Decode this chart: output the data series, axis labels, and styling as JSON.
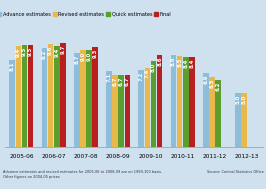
{
  "categories": [
    "2005-06",
    "2006-07",
    "2007-08",
    "2008-09",
    "2009-10",
    "2010-11",
    "2011-12",
    "2012-13"
  ],
  "series": {
    "Advance estimates": [
      8.1,
      9.2,
      8.7,
      7.1,
      7.2,
      8.6,
      6.9,
      5.0
    ],
    "Revised estimates": [
      9.4,
      9.6,
      9.0,
      6.7,
      7.4,
      8.5,
      6.5,
      5.0
    ],
    "Quick estimates": [
      9.5,
      9.4,
      9.0,
      6.7,
      8.0,
      8.4,
      6.2,
      null
    ],
    "Final": [
      9.5,
      9.7,
      9.3,
      6.7,
      8.6,
      8.4,
      null,
      null
    ]
  },
  "colors": {
    "Advance estimates": "#8dbdd8",
    "Revised estimates": "#e8b84b",
    "Quick estimates": "#5c9e2e",
    "Final": "#b82020"
  },
  "ylim": [
    0,
    10.5
  ],
  "bar_width": 0.19,
  "background_color": "#cfe0ef",
  "label_fontsize": 3.8,
  "tick_fontsize": 4.2,
  "legend_fontsize": 3.6,
  "footnote": "Advance estimates and revised estimates for 2005-06 to 2008-09 are on 1999-100 basis.\nOther figures on 2004-05 prices",
  "source": "Source: Central Statistics Office"
}
